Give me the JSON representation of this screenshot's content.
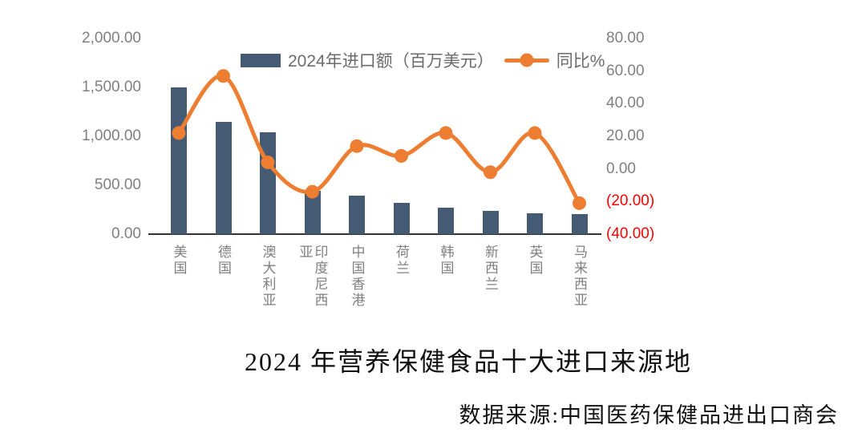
{
  "title": "2024 年营养保健食品十大进口来源地",
  "source": "数据来源:中国医药保健品进出口商会",
  "colors": {
    "bar": "#455a73",
    "line": "#ed7d31",
    "axis_text": "#7f7f7f",
    "negative_tick": "#ff0000",
    "axis_line": "#333333"
  },
  "chart_data": {
    "type": "bar",
    "subtype": "bar-line-combo",
    "title": "2024 年营养保健食品十大进口来源地",
    "categories": [
      "美国",
      "德国",
      "澳大利亚",
      "印度尼西亚",
      "中国香港",
      "荷兰",
      "韩国",
      "新西兰",
      "英国",
      "马来西亚"
    ],
    "series": [
      {
        "name": "2024年进口额（百万美元）",
        "type": "bar",
        "axis": "left",
        "values": [
          1500,
          1150,
          1045,
          445,
          390,
          320,
          270,
          240,
          215,
          205
        ]
      },
      {
        "name": "同比%",
        "type": "line",
        "axis": "right",
        "values": [
          22,
          57,
          4,
          -14,
          14,
          8,
          22,
          -2,
          22,
          -21
        ]
      }
    ],
    "left_axis": {
      "min": 0,
      "max": 2000,
      "tick_step": 500,
      "tick_labels": [
        "2,000.00",
        "1,500.00",
        "1,000.00",
        "500.00",
        "0.00"
      ]
    },
    "right_axis": {
      "min": -40,
      "max": 80,
      "tick_step": 20,
      "tick_labels": [
        "80.00",
        "60.00",
        "40.00",
        "20.00",
        "0.00",
        "(20.00)",
        "(40.00)"
      ],
      "negative_format": "parentheses-red"
    },
    "grid": false,
    "legend_position": "top"
  }
}
